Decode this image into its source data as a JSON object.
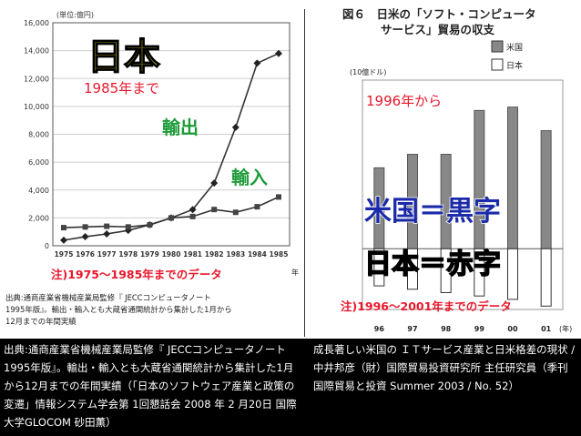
{
  "charts": {
    "japan": {
      "unit_label": "(単位:億円)",
      "title_big": "日本",
      "title_sub": "1985年まで",
      "export_label": "輸出",
      "import_label": "輸入",
      "note": "注)1975〜1985年までのデータ",
      "x_suffix": "年",
      "source_lines": [
        "出典:通商産業省機械産業局監修『 JECCコンピュータノート",
        "1995年版』。輸出・輸入とも大蔵省通関統計から集計した1月から",
        "12月までの年間実績"
      ]
    },
    "us_japan": {
      "figure_title_line1": "図６　日米の「ソフト・コンピュータ",
      "figure_title_line2": "サービス」貿易の収支",
      "unit_label": "(10億ドル)",
      "legend_us": "米国",
      "legend_jp": "日本",
      "since_label": "1996年から",
      "claim_us": "米国＝黒字",
      "claim_jp": "日本＝赤字",
      "note": "注)1996〜2001年までのデータ"
    }
  },
  "chart_data": [
    {
      "type": "line",
      "x": [
        1975,
        1976,
        1977,
        1978,
        1979,
        1980,
        1981,
        1982,
        1983,
        1984,
        1985
      ],
      "xtick_labels": [
        "1975",
        "1976",
        "1977",
        "1978",
        "1979",
        "1980",
        "1981",
        "1982",
        "1983",
        "1984",
        "1985"
      ],
      "yticks": [
        0,
        2000,
        4000,
        6000,
        8000,
        10000,
        12000,
        14000,
        16000
      ],
      "ylim": [
        0,
        16000
      ],
      "series": [
        {
          "name": "輸出",
          "marker": "diamond",
          "values": [
            400,
            650,
            850,
            1100,
            1500,
            2000,
            2600,
            4500,
            8500,
            13100,
            13800
          ]
        },
        {
          "name": "輸入",
          "marker": "square",
          "values": [
            1300,
            1350,
            1400,
            1350,
            1500,
            2000,
            2100,
            2600,
            2400,
            2800,
            3500
          ]
        }
      ]
    },
    {
      "type": "bar",
      "categories": [
        "96",
        "97",
        "98",
        "99",
        "00",
        "01"
      ],
      "xlabel_suffix": "(年)",
      "series": [
        {
          "name": "米国",
          "values": [
            2.4,
            2.8,
            2.8,
            4.1,
            4.2,
            3.5
          ]
        },
        {
          "name": "日本",
          "values": [
            -1.1,
            -1.2,
            -1.3,
            -1.4,
            -1.5,
            -1.7
          ]
        }
      ],
      "ylim": [
        -1.8,
        5.0
      ]
    }
  ],
  "captions": {
    "left": "出典:通商産業省機械産業局監修『 JECCコンピュータノート1995年版』。輸出・輸入とも大蔵省通関統計から集計した1月から12月までの年間実績（「日本のソフトウェア産業と政策の変遷」情報システム学会第 1回懇話会 2008 年 2 月20日 国際大学GLOCOM 砂田薫）",
    "right": "成長著しい米国の ＩＴサービス産業と日米格差の現状 / 中井邦彦（財）国際貿易投資研究所 主任研究員（季刊 国際貿易と投資 Summer 2003 / No. 52）"
  },
  "colors": {
    "red_text": "#e8182c",
    "yellow": "#f7ef2b",
    "green_text": "#1e9c3a",
    "us_bar": "#888888",
    "jp_bar": "#ffffff",
    "claim_us": "#1a2aa8",
    "claim_jp": "#e8182c"
  }
}
